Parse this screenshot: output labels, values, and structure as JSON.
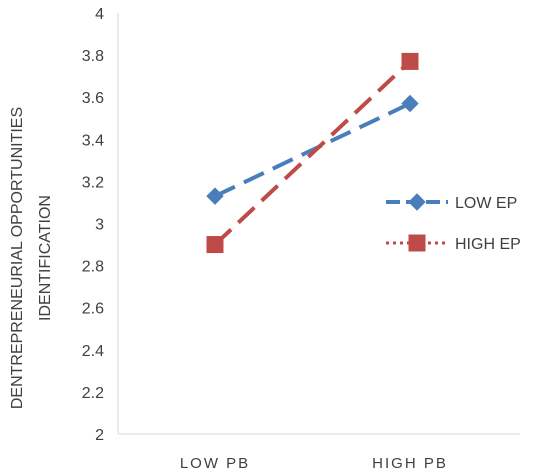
{
  "chart_data": {
    "type": "line",
    "categories": [
      "LOW PB",
      "HIGH PB"
    ],
    "series": [
      {
        "name": "LOW EP",
        "values": [
          3.13,
          3.57
        ],
        "color": "#4a7ebb",
        "dash": "dashed",
        "marker": "diamond"
      },
      {
        "name": "HIGH EP",
        "values": [
          2.9,
          3.77
        ],
        "color": "#be4b48",
        "dash": "dashed",
        "marker": "square"
      }
    ],
    "y_ticks": [
      "2",
      "2.2",
      "2.4",
      "2.6",
      "2.8",
      "3",
      "3.2",
      "3.4",
      "3.6",
      "3.8",
      "4"
    ],
    "ylim": [
      2,
      4
    ],
    "ylabel_lines": [
      "DENTREPRENEURIAL OPPORTUNITIES",
      "IDENTIFICATION"
    ],
    "xlabel": "",
    "title": "",
    "grid": false,
    "legend_position": "right"
  }
}
